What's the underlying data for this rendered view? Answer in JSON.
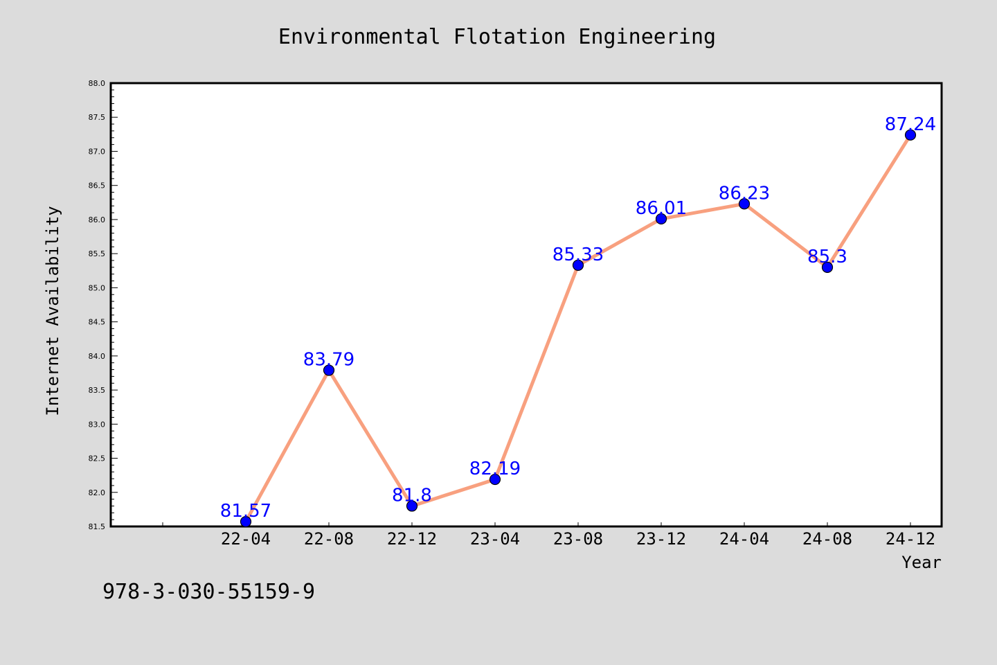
{
  "chart_data": {
    "type": "line",
    "title": "Environmental Flotation Engineering",
    "xlabel": "Year",
    "ylabel": "Internet Availability",
    "categories": [
      "22-04",
      "22-08",
      "22-12",
      "23-04",
      "23-08",
      "23-12",
      "24-04",
      "24-08",
      "24-12"
    ],
    "series": [
      {
        "values": [
          81.57,
          83.79,
          81.8,
          82.19,
          85.33,
          86.01,
          86.23,
          85.3,
          87.24
        ],
        "labels": [
          "81.57",
          "83.79",
          "81.8",
          "82.19",
          "85.33",
          "86.01",
          "86.23",
          "85.3",
          "87.24"
        ],
        "line_color": "#f8a07f",
        "marker_color": "#0000ff"
      }
    ],
    "ylim": [
      81.5,
      88.0
    ],
    "yticks": [
      "81.5",
      "82.0",
      "82.5",
      "83.0",
      "83.5",
      "84.0",
      "84.5",
      "85.0",
      "85.5",
      "86.0",
      "86.5",
      "87.0",
      "87.5",
      "88.0"
    ],
    "grid": false,
    "legend": "none"
  },
  "footer": {
    "isbn": "978-3-030-55159-9"
  },
  "colors": {
    "background": "#dcdcdc",
    "plot_background": "#ffffff",
    "line": "#f8a07f",
    "marker": "#0000ff",
    "data_label": "#0000ff"
  }
}
